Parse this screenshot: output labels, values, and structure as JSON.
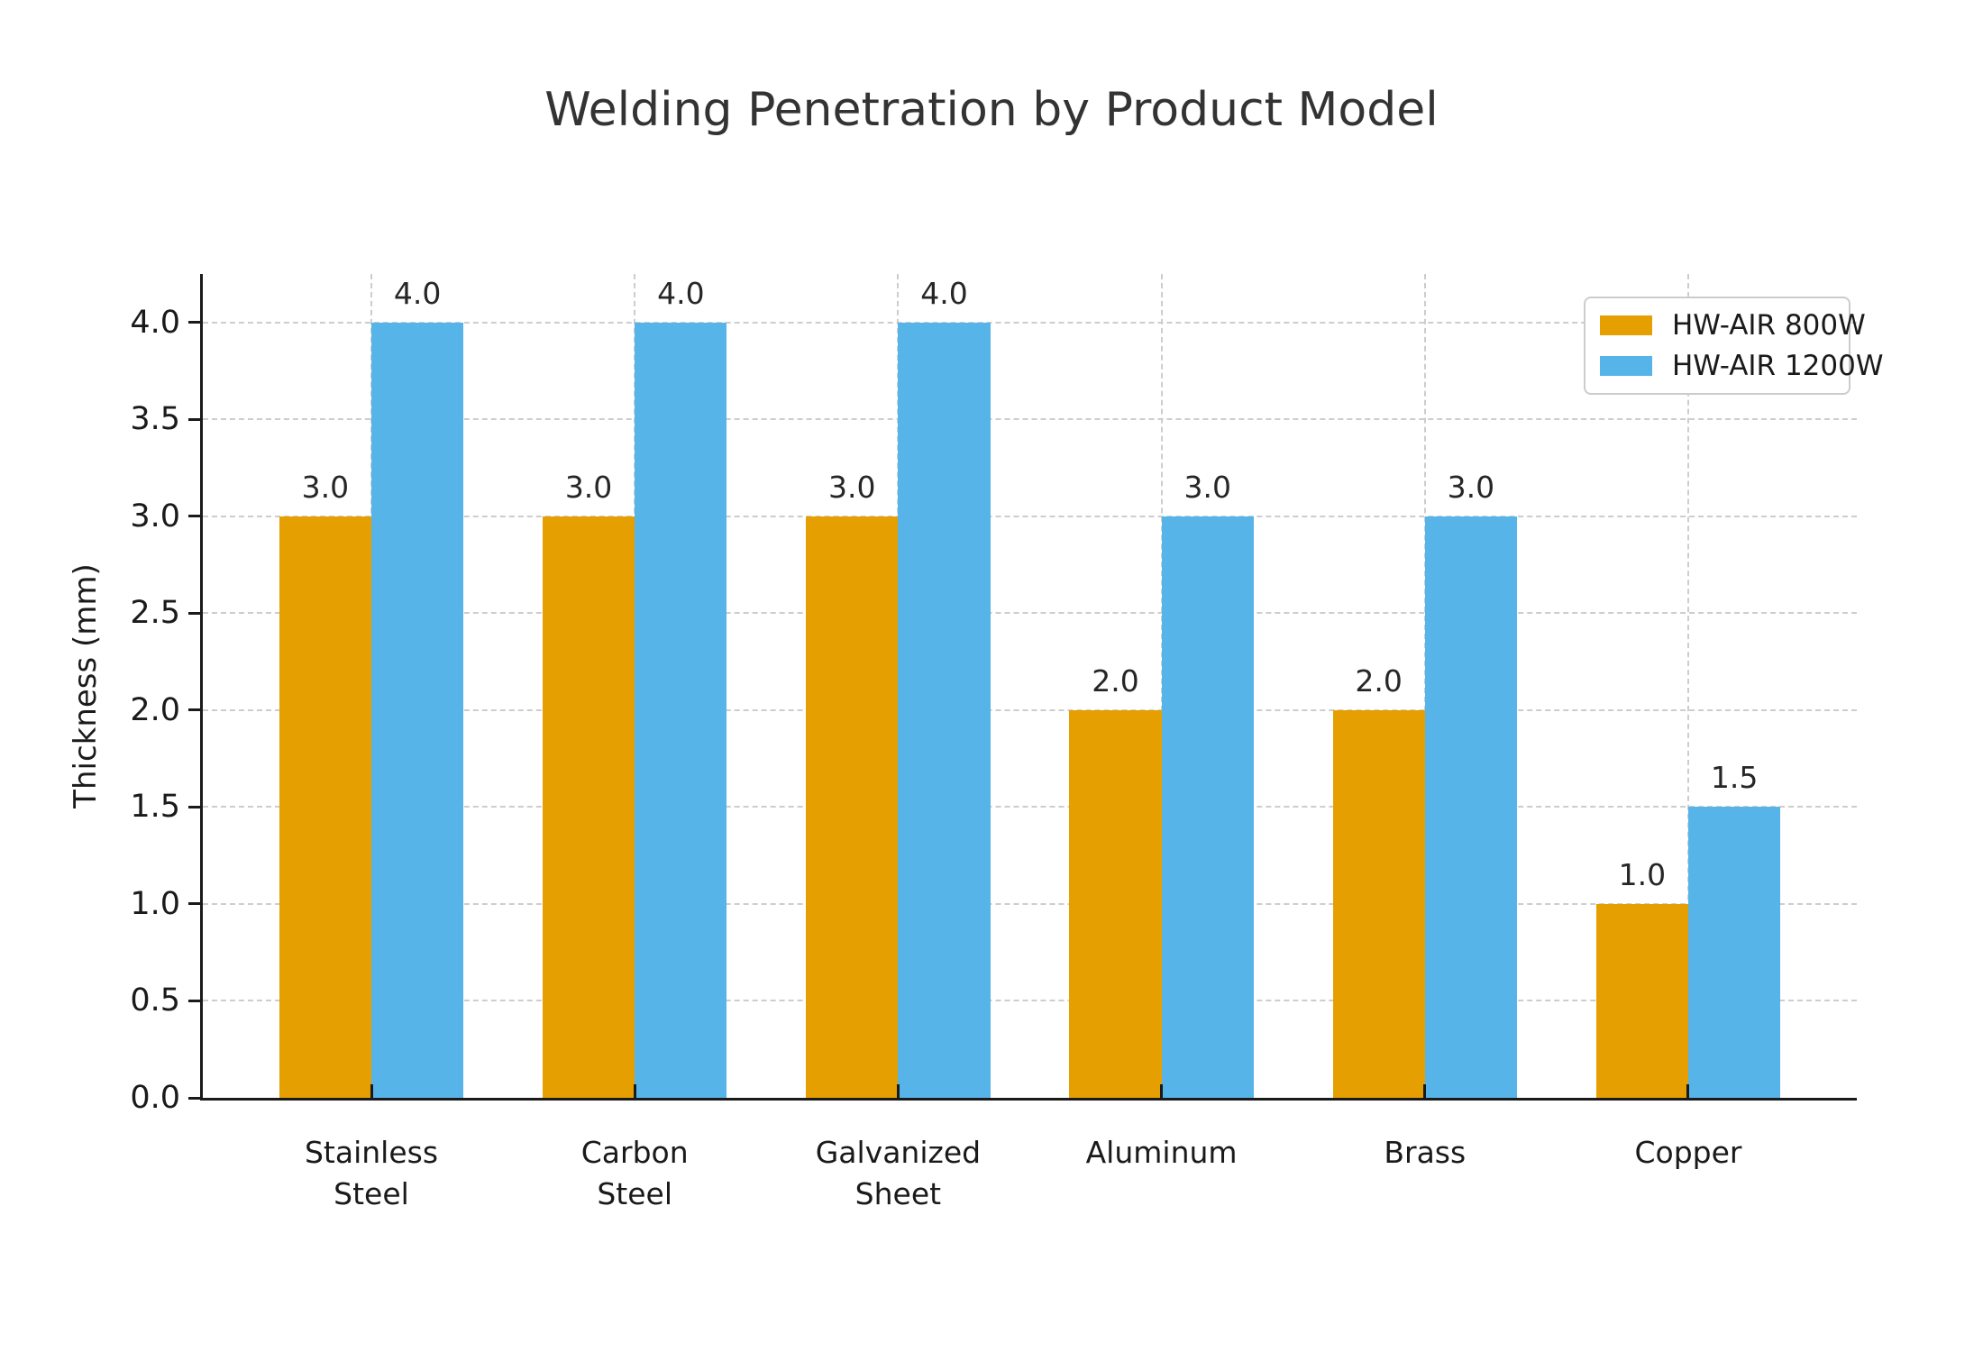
{
  "chart_data": {
    "type": "bar",
    "title": "Welding Penetration by Product Model",
    "xlabel": "",
    "ylabel": "Thickness (mm)",
    "categories": [
      "Stainless Steel",
      "Carbon Steel",
      "Galvanized Sheet",
      "Aluminum",
      "Brass",
      "Copper"
    ],
    "tick_labels": [
      "Stainless\nSteel",
      "Carbon\nSteel",
      "Galvanized\nSheet",
      "Aluminum",
      "Brass",
      "Copper"
    ],
    "series": [
      {
        "name": "HW-AIR 800W",
        "color": "#E69F00",
        "values": [
          3.0,
          3.0,
          3.0,
          2.0,
          2.0,
          1.0
        ]
      },
      {
        "name": "HW-AIR 1200W",
        "color": "#56B4E9",
        "values": [
          4.0,
          4.0,
          4.0,
          3.0,
          3.0,
          1.5
        ]
      }
    ],
    "yticks": [
      "0.0",
      "0.5",
      "1.0",
      "1.5",
      "2.0",
      "2.5",
      "3.0",
      "3.5",
      "4.0"
    ],
    "ylim": [
      0,
      4.25
    ],
    "xlim": [
      -0.64,
      5.64
    ],
    "bar_width_units": 0.35,
    "grid": "dashed",
    "legend_position": "upper right",
    "value_label_decimals": 1
  },
  "colors": {
    "background": "#ffffff",
    "axis": "#1a1a1a",
    "grid": "#cdcdcd",
    "title_text": "#333333",
    "legend_border": "#cccccc"
  }
}
